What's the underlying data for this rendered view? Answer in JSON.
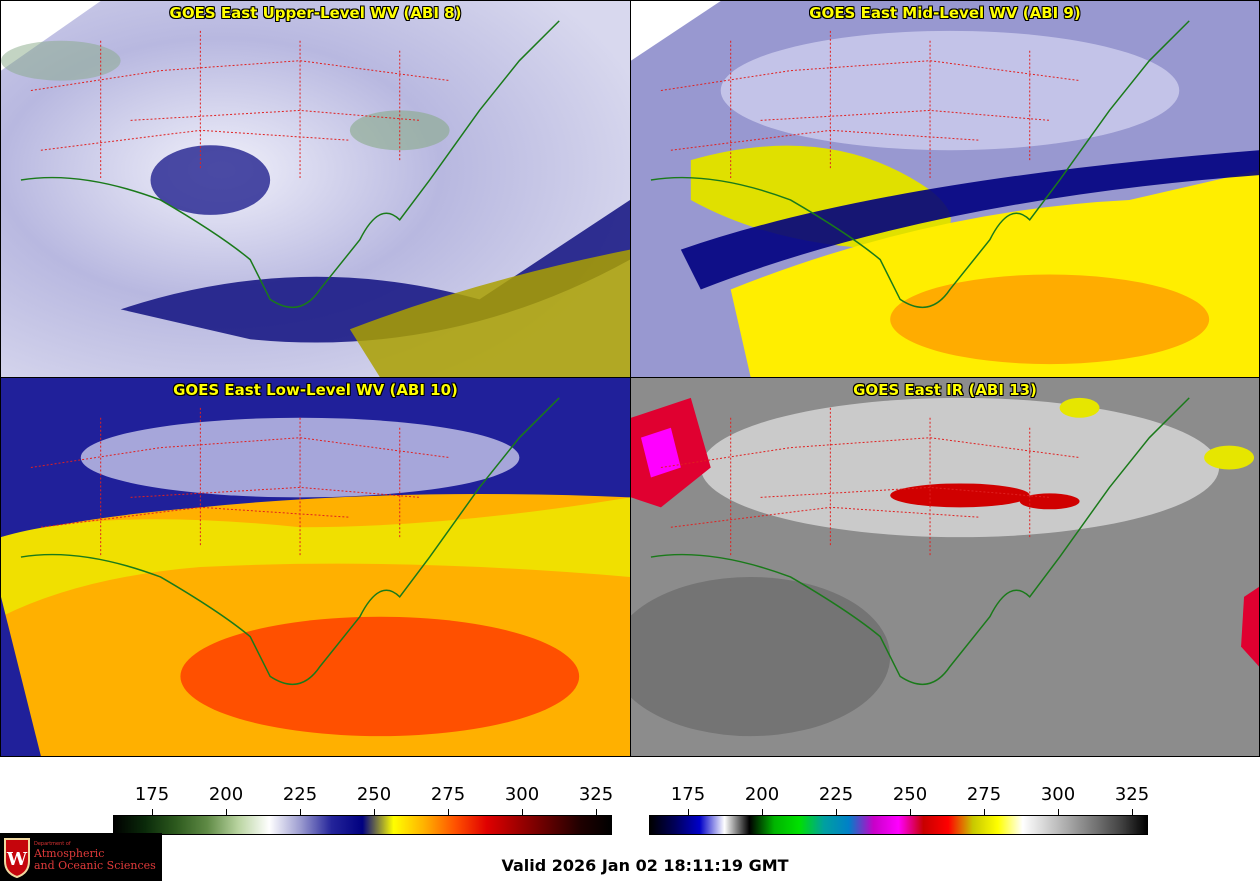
{
  "panels": [
    {
      "title": "GOES East Upper-Level WV (ABI 8)",
      "palette": "wv-upper"
    },
    {
      "title": "GOES East Mid-Level WV (ABI 9)",
      "palette": "wv-mid"
    },
    {
      "title": "GOES East Low-Level WV (ABI 10)",
      "palette": "wv-low"
    },
    {
      "title": "GOES East IR (ABI 13)",
      "palette": "ir"
    }
  ],
  "colorbars": [
    {
      "name": "wv-colorbar",
      "ticks": [
        "175",
        "200",
        "225",
        "250",
        "275",
        "300",
        "325"
      ],
      "colors": [
        "#000000",
        "#0a2a0a",
        "#2d5a1e",
        "#5f8a45",
        "#b9d4a0",
        "#ffffff",
        "#9c9cd0",
        "#24249a",
        "#000080",
        "#ffff00",
        "#ffb000",
        "#ff5000",
        "#e00000",
        "#a00000",
        "#600000",
        "#200000",
        "#000000"
      ]
    },
    {
      "name": "ir-colorbar",
      "ticks": [
        "175",
        "200",
        "225",
        "250",
        "275",
        "300",
        "325"
      ],
      "colors": [
        "#000000",
        "#00005a",
        "#0000c8",
        "#ffffff",
        "#000000",
        "#00b400",
        "#00e000",
        "#00a0a0",
        "#0080c8",
        "#c800c8",
        "#ff00ff",
        "#c80000",
        "#ff0000",
        "#c8c800",
        "#ffff00",
        "#ffffff",
        "#d0d0d0",
        "#a0a0a0",
        "#707070",
        "#404040",
        "#000000"
      ]
    }
  ],
  "valid_text": "Valid 2026 Jan 02 18:11:19 GMT",
  "logo": {
    "line1": "Department of",
    "line2": "Atmospheric",
    "line3": "and Oceanic Sciences"
  }
}
